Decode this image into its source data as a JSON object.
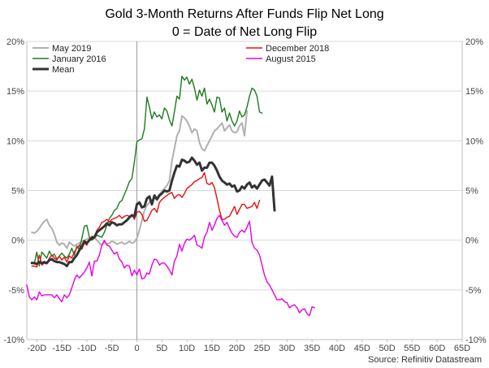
{
  "chart_data": {
    "type": "line",
    "title": "Gold 3-Month Returns After Funds Flip Net Long",
    "subtitle": "0 = Date of Net Long Flip",
    "source": "Source: Refinitiv Datastream",
    "xlabel": "",
    "ylabel": "",
    "xlim": [
      -22,
      65
    ],
    "ylim": [
      -10,
      20
    ],
    "x_ticks": [
      -20,
      -15,
      -10,
      -5,
      0,
      5,
      10,
      15,
      20,
      25,
      30,
      35,
      40,
      45,
      50,
      55,
      60,
      65
    ],
    "x_tick_labels": [
      "-20D",
      "-15D",
      "-10D",
      "-5D",
      "0",
      "5D",
      "10D",
      "15D",
      "20D",
      "25D",
      "30D",
      "35D",
      "40D",
      "45D",
      "50D",
      "55D",
      "60D",
      "65D"
    ],
    "y_ticks": [
      -10,
      -5,
      0,
      5,
      10,
      15,
      20
    ],
    "y_tick_labels": [
      "-10%",
      "-5%",
      "0%",
      "5%",
      "10%",
      "15%",
      "20%"
    ],
    "vline_x": 0,
    "grid": true,
    "legend_left": [
      "May 2019",
      "January 2016",
      "Mean"
    ],
    "legend_right": [
      "December 2018",
      "August 2015"
    ],
    "series": [
      {
        "name": "May 2019",
        "color": "#b0b0b0",
        "width": 2,
        "x_start": -21,
        "values": [
          0.8,
          0.7,
          0.9,
          1.2,
          1.6,
          1.9,
          2.1,
          1.5,
          1.2,
          0.6,
          -0.2,
          -0.5,
          -0.3,
          -0.4,
          -0.8,
          -0.2,
          -0.4,
          -0.6,
          -0.4,
          -0.3,
          -0.1,
          0.0,
          0.1,
          0.2,
          0.1,
          0.3,
          0.0,
          -0.3,
          -0.5,
          -0.2,
          -0.4,
          -0.3,
          -0.1,
          -0.2,
          -0.4,
          -0.3,
          -0.2,
          -0.4,
          -0.3,
          -0.1,
          -0.3,
          -0.2,
          0.2,
          1.0,
          2.0,
          3.0,
          3.5,
          3.8,
          4.0,
          4.2,
          4.3,
          4.6,
          4.9,
          5.2,
          5.5,
          6.0,
          8.0,
          9.2,
          10.5,
          11.0,
          12.5,
          12.3,
          12.0,
          11.5,
          10.8,
          11.2,
          11.0,
          9.8,
          9.2,
          9.0,
          9.5,
          10.0,
          10.5,
          11.0,
          11.2,
          11.5,
          11.8,
          11.0,
          11.3,
          11.6,
          11.0,
          10.8,
          10.9,
          11.5,
          11.8,
          10.5,
          13.0
        ]
      },
      {
        "name": "January 2016",
        "color": "#1e7a1e",
        "width": 1.4,
        "x_start": -21,
        "values": [
          -2.2,
          -2.4,
          -1.2,
          -2.6,
          -1.2,
          -1.5,
          -1.8,
          -1.1,
          -1.6,
          -1.4,
          -1.9,
          -1.6,
          -1.3,
          -1.6,
          -1.8,
          -1.4,
          -0.8,
          -1.5,
          -0.6,
          -0.9,
          0.2,
          1.4,
          1.5,
          0.3,
          0.0,
          0.2,
          0.5,
          0.4,
          0.3,
          0.8,
          1.5,
          2.2,
          2.5,
          3.0,
          3.2,
          3.8,
          4.0,
          4.6,
          5.2,
          5.9,
          6.2,
          7.9,
          9.9,
          10.1,
          10.2,
          11.2,
          14.4,
          13.4,
          12.2,
          12.9,
          12.4,
          12.6,
          12.2,
          13.3,
          13.0,
          12.1,
          11.5,
          12.9,
          14.5,
          14.2,
          16.5,
          16.1,
          16.4,
          15.7,
          16.2,
          15.3,
          14.1,
          15.1,
          14.5,
          15.3,
          13.7,
          14.2,
          13.6,
          12.9,
          14.4,
          14.3,
          12.9,
          13.3,
          12.0,
          12.8,
          12.0,
          11.5,
          12.0,
          13.0,
          12.4,
          12.6,
          13.4,
          14.5,
          15.3,
          15.1,
          14.5,
          12.9,
          12.8
        ]
      },
      {
        "name": "December 2018",
        "color": "#e81010",
        "width": 1.4,
        "x_start": -21,
        "values": [
          -2.6,
          -2.6,
          -2.7,
          -1.5,
          -2.5,
          -2.3,
          -2.4,
          -1.8,
          -1.5,
          -1.8,
          -2.0,
          -1.6,
          -2.0,
          -1.7,
          -2.2,
          -1.6,
          -1.8,
          -1.2,
          -0.8,
          -0.5,
          -0.9,
          -0.3,
          -0.5,
          0.1,
          0.4,
          0.3,
          1.0,
          1.3,
          1.8,
          1.9,
          2.1,
          1.8,
          2.1,
          2.2,
          2.3,
          2.5,
          2.2,
          2.4,
          2.5,
          2.4,
          2.6,
          2.1,
          2.8,
          2.9,
          2.6,
          1.9,
          2.0,
          2.5,
          3.0,
          3.2,
          2.8,
          3.8,
          4.1,
          4.3,
          4.5,
          4.7,
          4.8,
          4.2,
          4.5,
          4.6,
          4.3,
          4.7,
          5.2,
          5.4,
          5.6,
          5.9,
          6.0,
          6.2,
          6.3,
          6.8,
          5.7,
          5.6,
          5.8,
          5.3,
          4.2,
          3.0,
          2.1,
          2.1,
          2.3,
          2.4,
          2.9,
          3.4,
          2.6,
          3.1,
          3.6,
          3.6,
          3.2,
          3.3,
          3.4,
          3.8,
          3.2,
          4.0
        ]
      },
      {
        "name": "August 2015",
        "color": "#e600e6",
        "width": 1.4,
        "x_start": -22,
        "values": [
          -4.5,
          -5.7,
          -6.0,
          -5.7,
          -6.0,
          -5.2,
          -5.6,
          -5.5,
          -5.5,
          -5.5,
          -5.5,
          -5.8,
          -5.5,
          -5.9,
          -6.2,
          -5.5,
          -5.8,
          -5.5,
          -4.8,
          -4.0,
          -3.5,
          -3.8,
          -3.5,
          -3.2,
          -2.8,
          -2.2,
          -3.6,
          -2.1,
          -2.1,
          -1.5,
          -0.5,
          0.0,
          -0.5,
          -0.6,
          -1.0,
          -1.4,
          -1.2,
          -1.9,
          -2.2,
          -2.8,
          -2.5,
          -2.6,
          -3.6,
          -3.0,
          -3.5,
          -2.9,
          -3.9,
          -3.8,
          -3.3,
          -3.4,
          -2.5,
          -1.9,
          -2.0,
          -2.5,
          -2.3,
          -2.3,
          -2.6,
          -3.0,
          -3.5,
          -2.1,
          -1.6,
          -0.4,
          -1.1,
          -0.3,
          0.1,
          0.0,
          0.2,
          0.5,
          -0.5,
          -0.6,
          -0.8,
          0.3,
          0.8,
          1.8,
          1.0,
          1.5,
          2.2,
          2.5,
          2.0,
          1.5,
          1.8,
          1.2,
          0.7,
          0.4,
          0.3,
          0.8,
          1.0,
          0.8,
          1.3,
          1.9,
          -0.2,
          -0.8,
          -1.0,
          -1.5,
          -2.5,
          -3.5,
          -4.2,
          -4.5,
          -5.0,
          -5.5,
          -6.0,
          -6.0,
          -5.9,
          -6.2,
          -6.3,
          -6.8,
          -6.6,
          -6.5,
          -6.8,
          -7.3,
          -7.0,
          -6.9,
          -7.4,
          -7.6,
          -6.7,
          -6.8
        ]
      },
      {
        "name": "Mean",
        "color": "#333333",
        "width": 3,
        "x_start": -21,
        "values": [
          -2.3,
          -2.3,
          -2.4,
          -2.2,
          -2.3,
          -2.2,
          -2.3,
          -2.0,
          -1.9,
          -2.1,
          -2.2,
          -2.2,
          -2.3,
          -2.4,
          -2.6,
          -2.2,
          -2.2,
          -1.8,
          -1.5,
          -1.0,
          -0.6,
          -0.1,
          -0.3,
          0.0,
          0.2,
          0.3,
          0.8,
          1.0,
          1.2,
          1.4,
          1.7,
          1.5,
          1.8,
          1.7,
          1.5,
          1.6,
          1.6,
          1.8,
          2.0,
          2.3,
          2.5,
          2.4,
          3.6,
          3.8,
          3.3,
          3.4,
          4.2,
          4.4,
          3.6,
          4.5,
          4.1,
          4.5,
          4.7,
          5.0,
          4.9,
          5.0,
          6.0,
          6.8,
          7.5,
          7.4,
          8.1,
          8.0,
          7.8,
          7.9,
          8.3,
          8.0,
          7.6,
          7.8,
          7.0,
          7.3,
          7.3,
          7.8,
          7.8,
          7.5,
          7.0,
          6.4,
          6.0,
          5.8,
          5.6,
          5.7,
          5.4,
          5.5,
          4.9,
          5.0,
          5.4,
          5.2,
          5.6,
          5.8,
          5.3,
          5.5,
          5.2,
          5.6,
          6.0,
          6.1,
          5.8,
          5.5,
          6.4,
          3.0
        ]
      }
    ]
  }
}
